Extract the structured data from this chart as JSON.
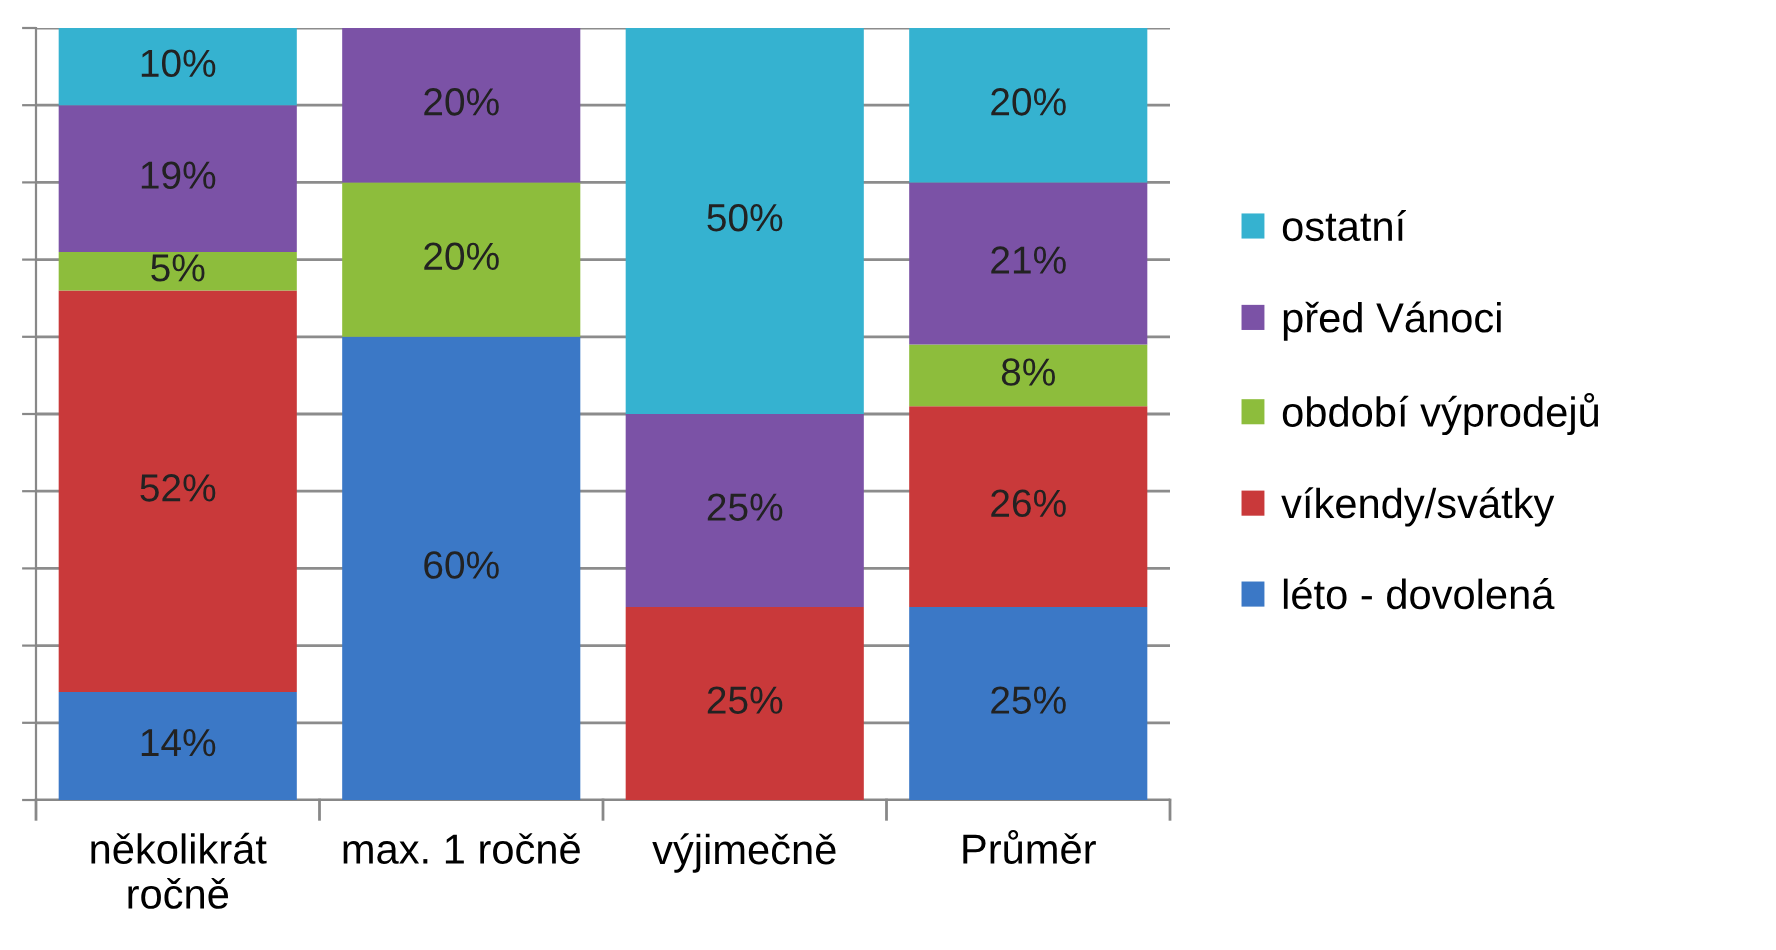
{
  "chart_data": {
    "type": "bar",
    "stacked": true,
    "categories": [
      "několikrát ročně",
      "max. 1 ročně",
      "výjimečně",
      "Průměr"
    ],
    "series": [
      {
        "name": "léto - dovolená",
        "color": "#3b78c6",
        "values": [
          14,
          60,
          null,
          25
        ],
        "value_labels": [
          "14%",
          "60%",
          null,
          "25%"
        ]
      },
      {
        "name": "víkendy/svátky",
        "color": "#c9393a",
        "values": [
          52,
          null,
          25,
          26
        ],
        "value_labels": [
          "52%",
          null,
          "25%",
          "26%"
        ]
      },
      {
        "name": "období výprodejů",
        "color": "#8dbd3c",
        "values": [
          5,
          20,
          null,
          8
        ],
        "value_labels": [
          "5%",
          "20%",
          null,
          "8%"
        ]
      },
      {
        "name": "před Vánoci",
        "color": "#7b52a6",
        "values": [
          19,
          20,
          25,
          21
        ],
        "value_labels": [
          "19%",
          "20%",
          "25%",
          "21%"
        ]
      },
      {
        "name": "ostatní",
        "color": "#35b2d0",
        "values": [
          10,
          null,
          50,
          20
        ],
        "value_labels": [
          "10%",
          null,
          "50%",
          "20%"
        ]
      }
    ],
    "tick_labels": "x",
    "grid": "y",
    "legend": "right"
  }
}
